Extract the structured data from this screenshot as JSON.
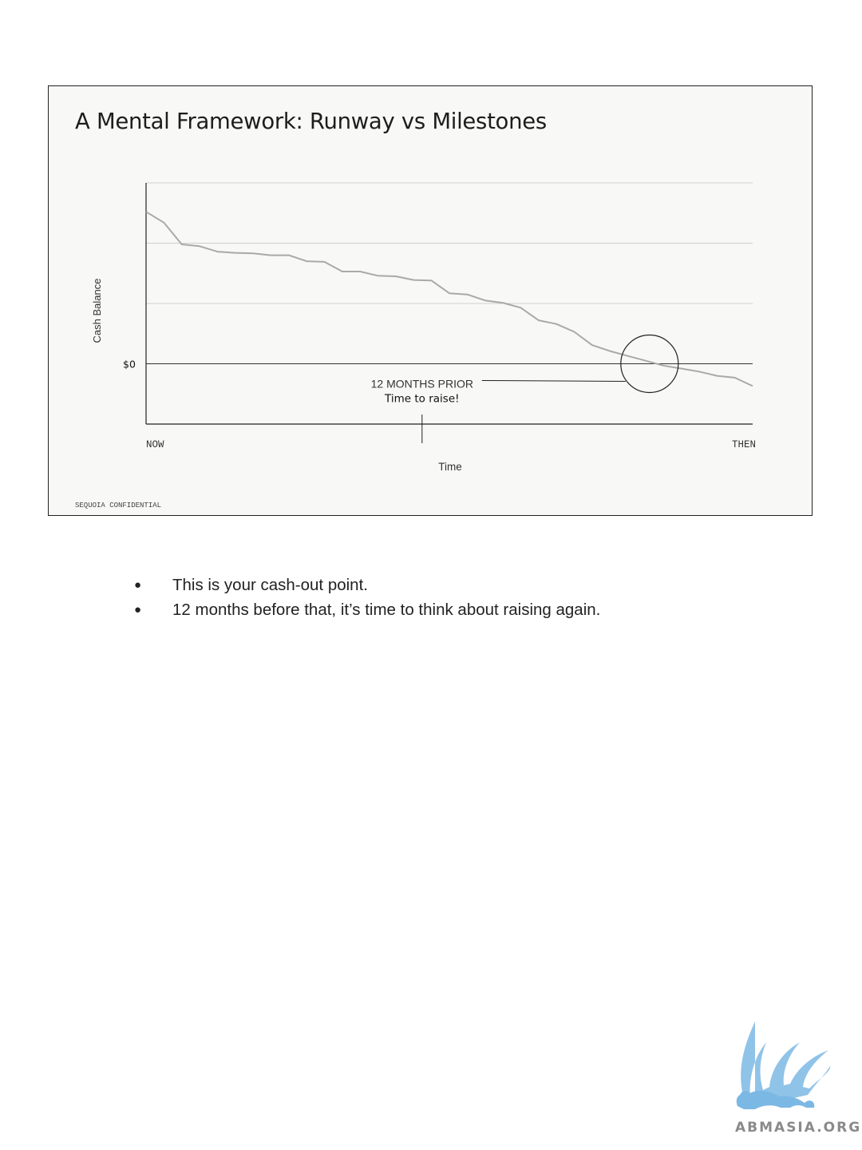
{
  "slide": {
    "title": "A Mental Framework: Runway vs Milestones",
    "confidential": "SEQUOIA CONFIDENTIAL"
  },
  "chart_data": {
    "type": "line",
    "title": "A Mental Framework: Runway vs Milestones",
    "xlabel": "Time",
    "ylabel": "Cash Balance",
    "x_start_label": "NOW",
    "x_end_label": "THEN",
    "zero_label": "$0",
    "ylim": [
      -1,
      3
    ],
    "grid": true,
    "series": [
      {
        "values": [
          2.52,
          2.34,
          1.98,
          1.95,
          1.86,
          1.84,
          1.83,
          1.8,
          1.8,
          1.7,
          1.69,
          1.53,
          1.53,
          1.46,
          1.45,
          1.39,
          1.38,
          1.17,
          1.15,
          1.05,
          1.01,
          0.93,
          0.72,
          0.66,
          0.53,
          0.31,
          0.21,
          0.13,
          0.05,
          -0.03,
          -0.08,
          -0.13,
          -0.2,
          -0.23,
          -0.37
        ]
      }
    ],
    "annotations": {
      "prior_label": "12 MONTHS PRIOR",
      "prior_sublabel": "Time to raise!",
      "prior_position": 0.455,
      "cashout_position": 0.83
    }
  },
  "bullets": [
    "This is your cash-out point.",
    "12 months before that, it’s time to think about raising again."
  ],
  "bullet_symbol": "●",
  "watermark": {
    "text": "ABMASIA.ORG",
    "color": "#7cb8e4"
  }
}
